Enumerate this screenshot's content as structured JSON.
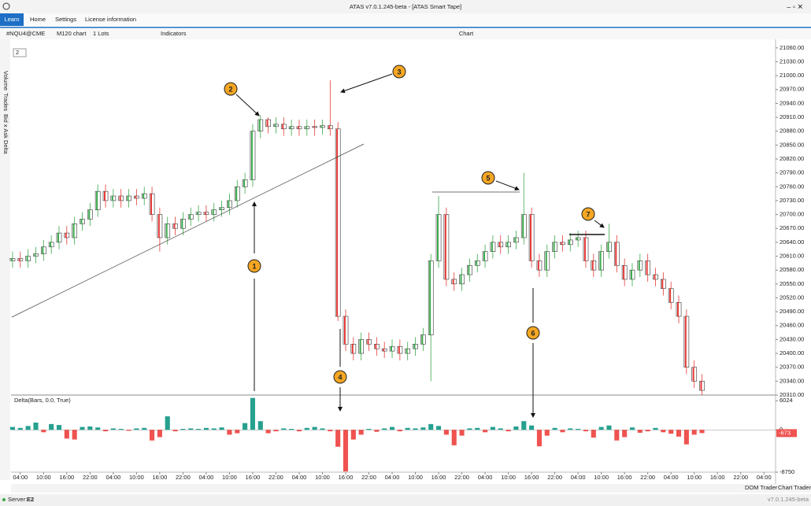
{
  "window": {
    "title": "ATAS v7.0.1.245-beta - [ATAS Smart Tape]"
  },
  "menu": [
    "Learn",
    "Home",
    "Settings",
    "License information"
  ],
  "toolbar": {
    "symbol": "#NQU4@CME",
    "timeframe": "M120 chart",
    "lots": "1 Lots",
    "indicators": "Indicators",
    "chart_title": "Chart",
    "zoom": "2"
  },
  "side_tabs": [
    "Volume",
    "Trades",
    "Bid x Ask",
    "Delta"
  ],
  "status": {
    "server": "Server:",
    "server_name": "E2",
    "dom": "DOM Trader",
    "chart_trader": "Chart Trader",
    "version": "v7.0.1.245-beta"
  },
  "annotations": [
    "1",
    "2",
    "3",
    "4",
    "5",
    "6",
    "7"
  ],
  "chart_data": {
    "type": "candlestick",
    "up_color": "#3aa84a",
    "down_color": "#e53935",
    "xlim": [
      -0.2,
      98.5
    ],
    "xticks": [
      {
        "value": 1,
        "label": "04:00"
      },
      {
        "value": 4,
        "label": "10:00"
      },
      {
        "value": 7,
        "label": "16:00"
      },
      {
        "value": 10,
        "label": "22:00"
      },
      {
        "value": 13,
        "label": "04:00"
      },
      {
        "value": 16,
        "label": "10:00"
      },
      {
        "value": 19,
        "label": "16:00"
      },
      {
        "value": 22,
        "label": "22:00"
      },
      {
        "value": 25,
        "label": "04:00"
      },
      {
        "value": 28,
        "label": "10:00"
      },
      {
        "value": 31,
        "label": "16:00"
      },
      {
        "value": 34,
        "label": "22:00"
      },
      {
        "value": 37,
        "label": "04:00"
      },
      {
        "value": 40,
        "label": "10:00"
      },
      {
        "value": 43,
        "label": "16:00"
      },
      {
        "value": 46,
        "label": "22:00"
      },
      {
        "value": 49,
        "label": "04:00"
      },
      {
        "value": 52,
        "label": "10:00"
      },
      {
        "value": 55,
        "label": "16:00"
      },
      {
        "value": 58,
        "label": "22:00"
      },
      {
        "value": 61,
        "label": "04:00"
      },
      {
        "value": 64,
        "label": "10:00"
      },
      {
        "value": 67,
        "label": "16:00"
      },
      {
        "value": 70,
        "label": "22:00"
      },
      {
        "value": 73,
        "label": "04:00"
      },
      {
        "value": 76,
        "label": "10:00"
      },
      {
        "value": 79,
        "label": "16:00"
      },
      {
        "value": 82,
        "label": "22:00"
      },
      {
        "value": 85,
        "label": "04:00"
      },
      {
        "value": 88,
        "label": "10:00"
      },
      {
        "value": 91,
        "label": "16:00"
      },
      {
        "value": 94,
        "label": "22:00"
      },
      {
        "value": 97,
        "label": "04:00"
      }
    ],
    "ylim": [
      20310,
      21075
    ],
    "yticks": [
      {
        "value": 21060,
        "label": "21060.00"
      },
      {
        "value": 21030,
        "label": "21030.00"
      },
      {
        "value": 21000,
        "label": "21000.00"
      },
      {
        "value": 20970,
        "label": "20970.00"
      },
      {
        "value": 20940,
        "label": "20940.00"
      },
      {
        "value": 20910,
        "label": "20910.00"
      },
      {
        "value": 20880,
        "label": "20880.00"
      },
      {
        "value": 20850,
        "label": "20850.00"
      },
      {
        "value": 20820,
        "label": "20820.00"
      },
      {
        "value": 20790,
        "label": "20790.00"
      },
      {
        "value": 20760,
        "label": "20760.00"
      },
      {
        "value": 20730,
        "label": "20730.00"
      },
      {
        "value": 20700,
        "label": "20700.00"
      },
      {
        "value": 20670,
        "label": "20670.00"
      },
      {
        "value": 20640,
        "label": "20640.00"
      },
      {
        "value": 20610,
        "label": "20610.00"
      },
      {
        "value": 20580,
        "label": "20580.00"
      },
      {
        "value": 20550,
        "label": "20550.00"
      },
      {
        "value": 20520,
        "label": "20520.00"
      },
      {
        "value": 20490,
        "label": "20490.00"
      },
      {
        "value": 20460,
        "label": "20460.00"
      },
      {
        "value": 20430,
        "label": "20430.00"
      },
      {
        "value": 20400,
        "label": "20400.00"
      },
      {
        "value": 20370,
        "label": "20370.00"
      },
      {
        "value": 20340,
        "label": "20340.00"
      },
      {
        "value": 20310,
        "label": "20310.00"
      }
    ],
    "open": [
      20600,
      20605,
      20600,
      20610,
      20615,
      20630,
      20640,
      20660,
      20650,
      20680,
      20690,
      20710,
      20750,
      20730,
      20740,
      20730,
      20740,
      20735,
      20745,
      20700,
      20650,
      20680,
      20670,
      20690,
      20700,
      20705,
      20700,
      20710,
      20715,
      20730,
      20760,
      20775,
      20880,
      20905,
      20890,
      20895,
      20885,
      20890,
      20885,
      20890,
      20888,
      20892,
      20885,
      20480,
      20420,
      20400,
      20430,
      20420,
      20410,
      20405,
      20415,
      20400,
      20410,
      20420,
      20440,
      20600,
      20700,
      20560,
      20550,
      20570,
      20590,
      20600,
      20620,
      20640,
      20630,
      20640,
      20650,
      20700,
      20600,
      20580,
      20620,
      20640,
      20635,
      20645,
      20650,
      20600,
      20580,
      20620,
      20640,
      20590,
      20560,
      20580,
      20600,
      20570,
      20560,
      20540,
      20510,
      20480,
      20370,
      20340
    ],
    "high": [
      20620,
      20620,
      20625,
      20630,
      20645,
      20655,
      20675,
      20675,
      20695,
      20705,
      20725,
      20765,
      20765,
      20755,
      20755,
      20755,
      20755,
      20760,
      20760,
      20715,
      20695,
      20695,
      20705,
      20715,
      20720,
      20720,
      20725,
      20730,
      20745,
      20775,
      20790,
      20895,
      20915,
      20910,
      20910,
      20910,
      20905,
      20905,
      20905,
      20905,
      20905,
      20990,
      20900,
      20495,
      20435,
      20445,
      20445,
      20435,
      20425,
      20430,
      20430,
      20425,
      20435,
      20455,
      20615,
      20740,
      20715,
      20575,
      20585,
      20605,
      20615,
      20635,
      20655,
      20655,
      20655,
      20665,
      20790,
      20715,
      20615,
      20635,
      20655,
      20655,
      20660,
      20665,
      20665,
      20615,
      20635,
      20680,
      20655,
      20605,
      20595,
      20615,
      20615,
      20585,
      20575,
      20555,
      20525,
      20495,
      20385,
      20355
    ],
    "low": [
      20585,
      20585,
      20585,
      20595,
      20600,
      20615,
      20625,
      20635,
      20635,
      20665,
      20675,
      20695,
      20715,
      20715,
      20715,
      20715,
      20720,
      20720,
      20685,
      20620,
      20635,
      20655,
      20655,
      20675,
      20685,
      20685,
      20685,
      20695,
      20700,
      20715,
      20745,
      20760,
      20865,
      20875,
      20875,
      20870,
      20870,
      20870,
      20870,
      20870,
      20873,
      20870,
      20470,
      20405,
      20385,
      20385,
      20405,
      20395,
      20390,
      20390,
      20385,
      20385,
      20395,
      20405,
      20340,
      20585,
      20545,
      20535,
      20535,
      20555,
      20575,
      20585,
      20605,
      20615,
      20615,
      20625,
      20635,
      20585,
      20565,
      20565,
      20605,
      20620,
      20620,
      20630,
      20585,
      20565,
      20565,
      20605,
      20575,
      20545,
      20545,
      20565,
      20555,
      20545,
      20525,
      20495,
      20465,
      20355,
      20325,
      20310
    ],
    "close": [
      20605,
      20600,
      20610,
      20615,
      20630,
      20640,
      20660,
      20650,
      20680,
      20690,
      20710,
      20750,
      20730,
      20740,
      20730,
      20740,
      20735,
      20745,
      20700,
      20650,
      20680,
      20670,
      20690,
      20700,
      20705,
      20700,
      20710,
      20715,
      20730,
      20760,
      20775,
      20880,
      20905,
      20890,
      20895,
      20885,
      20890,
      20885,
      20890,
      20888,
      20892,
      20885,
      20480,
      20420,
      20400,
      20430,
      20420,
      20410,
      20405,
      20415,
      20400,
      20410,
      20420,
      20440,
      20600,
      20700,
      20560,
      20550,
      20570,
      20590,
      20600,
      20620,
      20640,
      20630,
      20640,
      20650,
      20700,
      20600,
      20580,
      20620,
      20640,
      20635,
      20645,
      20650,
      20600,
      20580,
      20620,
      20640,
      20590,
      20560,
      20580,
      20600,
      20570,
      20560,
      20540,
      20510,
      20480,
      20370,
      20340,
      20320
    ],
    "delta": {
      "label": "Delta(Bars, 0.0, True)",
      "pos_color": "#26a08f",
      "neg_color": "#ef5350",
      "ylim": [
        -8750,
        7200
      ],
      "yticks": [
        6024,
        0,
        -8750
      ],
      "values": [
        600,
        400,
        800,
        1500,
        -500,
        1200,
        1000,
        -1800,
        -2000,
        600,
        700,
        500,
        -300,
        300,
        200,
        -200,
        300,
        400,
        -2200,
        -1500,
        2800,
        -300,
        200,
        300,
        200,
        400,
        300,
        500,
        -1000,
        -700,
        1400,
        6600,
        1800,
        -700,
        -300,
        300,
        200,
        -300,
        400,
        600,
        300,
        -300,
        -3500,
        -8600,
        -2000,
        -1000,
        200,
        -400,
        300,
        600,
        -300,
        400,
        300,
        500,
        1200,
        800,
        -1000,
        -3200,
        -1200,
        300,
        400,
        -500,
        600,
        300,
        -300,
        700,
        1800,
        900,
        -3400,
        -1200,
        400,
        -500,
        300,
        200,
        -300,
        -1600,
        600,
        900,
        -2200,
        -1500,
        500,
        -600,
        -300,
        400,
        -500,
        -800,
        -1400,
        -3000,
        -1000,
        -673
      ]
    }
  }
}
